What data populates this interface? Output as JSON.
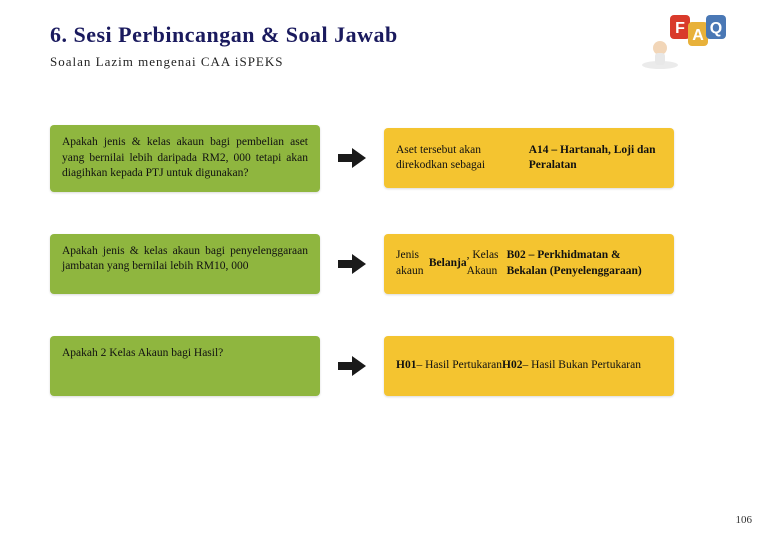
{
  "header": {
    "title": "6. Sesi Perbincangan & Soal Jawab",
    "subtitle": "Soalan Lazim mengenai CAA iSPEKS"
  },
  "colors": {
    "question_bg": "#8fb63f",
    "answer_bg": "#f4c430",
    "arrow": "#1a1a1a",
    "title": "#1a1a5e",
    "faq_f": "#d93a2b",
    "faq_a": "#e8b13a",
    "faq_q": "#4a78b5"
  },
  "rows": [
    {
      "question": "Apakah jenis & kelas akaun bagi pembelian aset yang bernilai lebih daripada RM2, 000 tetapi akan diagihkan kepada PTJ untuk digunakan?",
      "answer": "Aset tersebut akan direkodkan sebagai <b>A14 – Hartanah, Loji dan Peralatan</b>"
    },
    {
      "question": "Apakah jenis & kelas akaun bagi penyelenggaraan jambatan yang bernilai lebih RM10, 000",
      "answer": "Jenis akaun <b>Belanja</b>, Kelas Akaun <b>B02 – Perkhidmatan & Bekalan (Penyelenggaraan)</b>"
    },
    {
      "question": "Apakah 2 Kelas Akaun bagi Hasil?",
      "answer": "<b>H01</b> – Hasil Pertukaran<br><b>H02</b> – Hasil Bukan Pertukaran"
    }
  ],
  "page_number": "106"
}
